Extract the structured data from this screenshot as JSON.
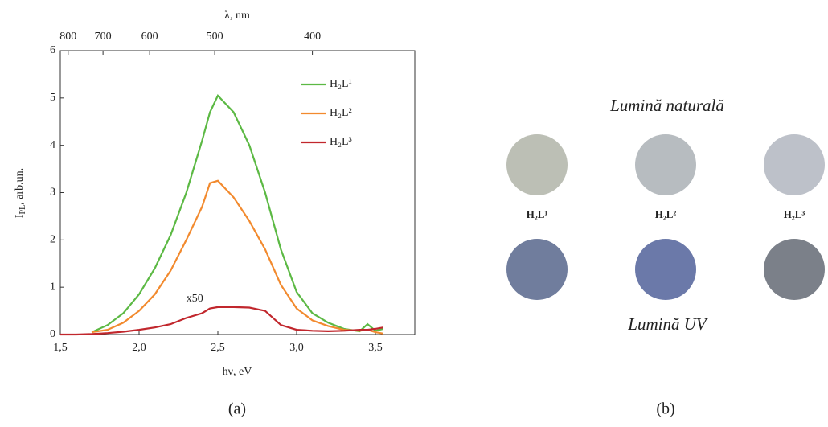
{
  "chart_data": {
    "type": "line",
    "xlabel": "hν, eV",
    "ylabel": "I",
    "ylabel_sub": "PL",
    "ylabel_rest": ", arb.un.",
    "x2label": "λ, nm",
    "annotation": "x50",
    "caption": "(a)",
    "x": [
      1.5,
      1.6,
      1.7,
      1.8,
      1.9,
      2.0,
      2.1,
      2.2,
      2.3,
      2.4,
      2.45,
      2.5,
      2.6,
      2.7,
      2.8,
      2.9,
      3.0,
      3.1,
      3.2,
      3.3,
      3.4,
      3.45,
      3.5,
      3.55
    ],
    "series": [
      {
        "name": "H₂L¹",
        "color": "#5cb944",
        "values": [
          null,
          null,
          0.05,
          0.2,
          0.45,
          0.85,
          1.4,
          2.1,
          3.0,
          4.1,
          4.7,
          5.05,
          4.7,
          4.0,
          3.0,
          1.8,
          0.9,
          0.45,
          0.25,
          0.12,
          0.07,
          0.22,
          0.08,
          0.12
        ]
      },
      {
        "name": "H₂L²",
        "color": "#f28a2e",
        "values": [
          null,
          null,
          0.05,
          0.1,
          0.25,
          0.5,
          0.85,
          1.35,
          2.0,
          2.7,
          3.2,
          3.25,
          2.9,
          2.4,
          1.8,
          1.05,
          0.55,
          0.3,
          0.18,
          0.1,
          0.08,
          0.1,
          0.05,
          0.02
        ]
      },
      {
        "name": "H₂L³",
        "color": "#c1272d",
        "values": [
          0,
          0,
          0.01,
          0.03,
          0.06,
          0.1,
          0.15,
          0.22,
          0.35,
          0.45,
          0.55,
          0.58,
          0.58,
          0.57,
          0.5,
          0.2,
          0.1,
          0.08,
          0.07,
          0.08,
          0.1,
          0.1,
          0.12,
          0.15
        ]
      }
    ],
    "xlim": [
      1.5,
      3.75
    ],
    "xticks": [
      {
        "value": 1.5,
        "label": "1,5"
      },
      {
        "value": 2.0,
        "label": "2,0"
      },
      {
        "value": 2.5,
        "label": "2,5"
      },
      {
        "value": 3.0,
        "label": "3,0"
      },
      {
        "value": 3.5,
        "label": "3,5"
      }
    ],
    "x2ticks": [
      {
        "value": 1.55,
        "label": "800"
      },
      {
        "value": 1.771,
        "label": "700"
      },
      {
        "value": 2.067,
        "label": "600"
      },
      {
        "value": 2.48,
        "label": "500"
      },
      {
        "value": 3.1,
        "label": "400"
      }
    ],
    "ylim": [
      0,
      6
    ],
    "yticks": [
      0,
      1,
      2,
      3,
      4,
      5,
      6
    ],
    "legend": "upper right"
  },
  "panel_b": {
    "top_caption": "Lumină naturală",
    "bottom_caption": "Lumină UV",
    "labels": [
      "H₂L¹",
      "H₂L²",
      "H₂L³"
    ],
    "caption": "(b)"
  }
}
